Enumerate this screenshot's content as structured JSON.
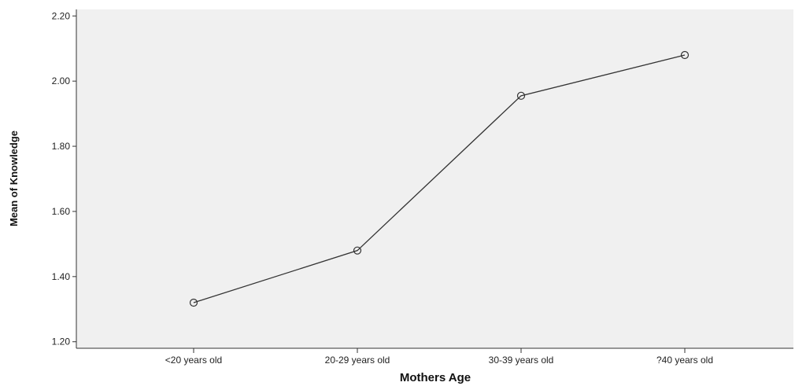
{
  "chart_data": {
    "type": "line",
    "title": "",
    "xlabel": "Mothers Age",
    "ylabel": "Mean of Knowledge",
    "categories": [
      "<20 years old",
      "20-29 years old",
      "30-39 years old",
      "?40 years old"
    ],
    "series": [
      {
        "values": [
          1.32,
          1.48,
          1.955,
          2.08
        ]
      }
    ],
    "ylim": [
      1.18,
      2.22
    ],
    "yticks": [
      "1.20",
      "1.40",
      "1.60",
      "1.80",
      "2.00",
      "2.20"
    ],
    "grid": false,
    "legend": "none",
    "colors": {
      "plot_bg": "#f0f0f0",
      "line": "#333333",
      "axis": "#333333",
      "page_bg": "#ffffff"
    }
  }
}
